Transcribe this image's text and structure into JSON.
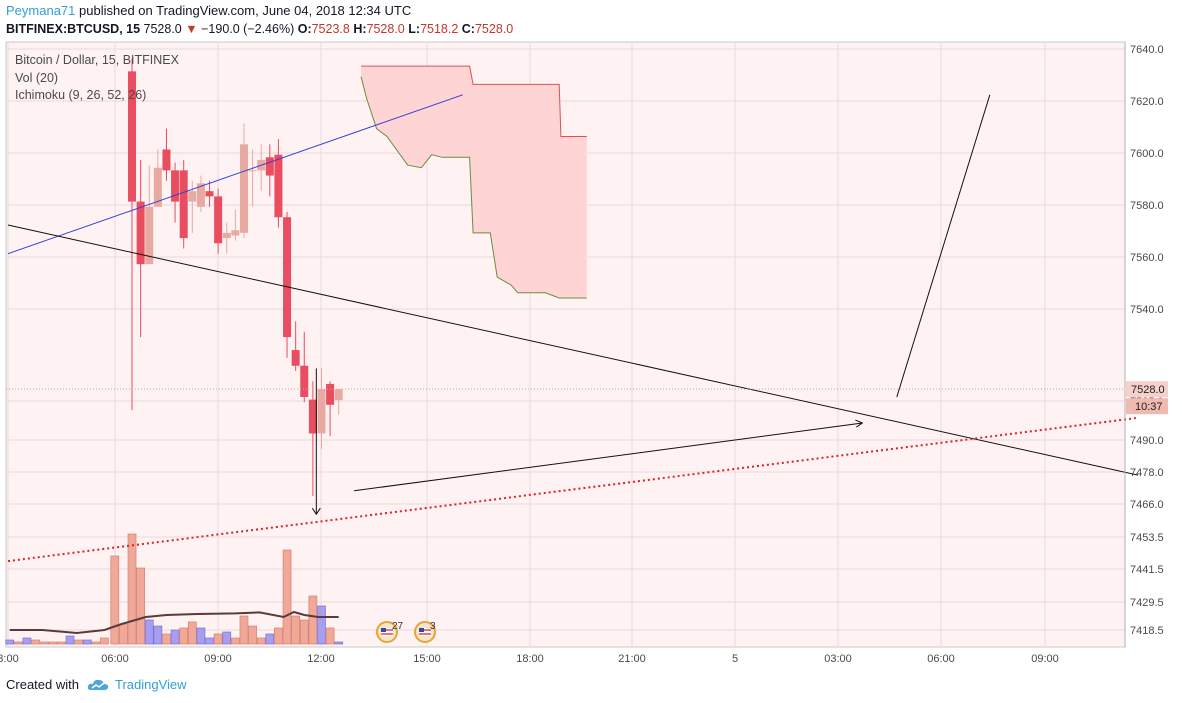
{
  "header": {
    "author": "Peymana71",
    "published_text": "published on TradingView.com, June 04, 2018 12:34 UTC",
    "symbol": "BITFINEX:BTCUSD, 15",
    "last": "7528.0",
    "change": "−190.0 (−2.46%)",
    "o_label": "O:",
    "o_value": "7523.8",
    "h_label": "H:",
    "h_value": "7528.0",
    "l_label": "L:",
    "l_value": "7518.2",
    "c_label": "C:",
    "c_value": "7528.0"
  },
  "legend": {
    "title": "Bitcoin / Dollar, 15, BITFINEX",
    "vol": "Vol (20)",
    "ichimoku": "Ichimoku (9, 26, 52, 26)"
  },
  "footer": {
    "created_with": "Created with",
    "brand": "TradingView"
  },
  "colors": {
    "up": "#e8a9a0",
    "down": "#e84d60",
    "vol_red": "#f0a899",
    "vol_blue": "#a69ff0",
    "cloud": "#ffd4d4",
    "blue_line": "#2a3fd8",
    "dotted": "#e02020",
    "bg": "#fff2f3"
  },
  "chart_data": {
    "type": "candlestick",
    "price_axis": {
      "labels": [
        "7640.0",
        "7620.0",
        "7600.0",
        "7580.0",
        "7560.0",
        "7540.0",
        "7505.0",
        "7490.0",
        "7478.0",
        "7466.0",
        "7453.5",
        "7441.5",
        "7429.5",
        "7418.5"
      ],
      "current_price": "7528.0",
      "countdown": "10:37"
    },
    "time_axis": {
      "labels": [
        "3:00",
        "06:00",
        "09:00",
        "12:00",
        "15:00",
        "18:00",
        "21:00",
        "5",
        "03:00",
        "06:00",
        "09:00"
      ],
      "start_hour": 3
    },
    "candles": [
      {
        "t": 6.6,
        "o": 7650,
        "h": 7655,
        "l": 7520,
        "c": 7600
      },
      {
        "t": 6.85,
        "o": 7600,
        "h": 7616,
        "l": 7548,
        "c": 7576
      },
      {
        "t": 7.1,
        "o": 7576,
        "h": 7614,
        "l": 7576,
        "c": 7598
      },
      {
        "t": 7.35,
        "o": 7598,
        "h": 7620,
        "l": 7598,
        "c": 7613
      },
      {
        "t": 7.6,
        "o": 7620,
        "h": 7628,
        "l": 7608,
        "c": 7612
      },
      {
        "t": 7.85,
        "o": 7612,
        "h": 7615,
        "l": 7592,
        "c": 7600
      },
      {
        "t": 8.1,
        "o": 7612,
        "h": 7616,
        "l": 7582,
        "c": 7586
      },
      {
        "t": 8.35,
        "o": 7600,
        "h": 7608,
        "l": 7588,
        "c": 7604
      },
      {
        "t": 8.6,
        "o": 7598,
        "h": 7610,
        "l": 7596,
        "c": 7607
      },
      {
        "t": 8.85,
        "o": 7604,
        "h": 7608,
        "l": 7598,
        "c": 7602
      },
      {
        "t": 9.1,
        "o": 7602,
        "h": 7605,
        "l": 7580,
        "c": 7584
      },
      {
        "t": 9.35,
        "o": 7586,
        "h": 7592,
        "l": 7580,
        "c": 7588
      },
      {
        "t": 9.6,
        "o": 7587,
        "h": 7597,
        "l": 7585,
        "c": 7589
      },
      {
        "t": 9.85,
        "o": 7588,
        "h": 7630,
        "l": 7586,
        "c": 7622
      },
      {
        "t": 10.1,
        "o": 7612,
        "h": 7620,
        "l": 7598,
        "c": 7612
      },
      {
        "t": 10.35,
        "o": 7612,
        "h": 7622,
        "l": 7604,
        "c": 7616
      },
      {
        "t": 10.6,
        "o": 7617,
        "h": 7622,
        "l": 7602,
        "c": 7610
      },
      {
        "t": 10.85,
        "o": 7618,
        "h": 7624,
        "l": 7590,
        "c": 7594
      },
      {
        "t": 11.1,
        "o": 7594,
        "h": 7596,
        "l": 7540,
        "c": 7548
      },
      {
        "t": 11.35,
        "o": 7543,
        "h": 7554,
        "l": 7535,
        "c": 7537
      },
      {
        "t": 11.6,
        "o": 7537,
        "h": 7550,
        "l": 7523,
        "c": 7525
      },
      {
        "t": 11.85,
        "o": 7524,
        "h": 7531,
        "l": 7487,
        "c": 7511
      },
      {
        "t": 12.1,
        "o": 7511,
        "h": 7536,
        "l": 7505,
        "c": 7528
      },
      {
        "t": 12.35,
        "o": 7530,
        "h": 7531,
        "l": 7510,
        "c": 7522
      },
      {
        "t": 12.6,
        "o": 7523.8,
        "h": 7528,
        "l": 7518.2,
        "c": 7528
      }
    ],
    "volume": [
      {
        "t": 3.05,
        "v": 2,
        "color": "blue"
      },
      {
        "t": 3.3,
        "v": 1,
        "color": "red"
      },
      {
        "t": 3.55,
        "v": 3,
        "color": "blue"
      },
      {
        "t": 3.8,
        "v": 2,
        "color": "red"
      },
      {
        "t": 4.05,
        "v": 1,
        "color": "red"
      },
      {
        "t": 4.3,
        "v": 1,
        "color": "red"
      },
      {
        "t": 4.55,
        "v": 1,
        "color": "red"
      },
      {
        "t": 4.8,
        "v": 4,
        "color": "blue"
      },
      {
        "t": 5.05,
        "v": 2,
        "color": "red"
      },
      {
        "t": 5.3,
        "v": 2,
        "color": "blue"
      },
      {
        "t": 5.55,
        "v": 1,
        "color": "red"
      },
      {
        "t": 5.8,
        "v": 3,
        "color": "red"
      },
      {
        "t": 6.1,
        "v": 44,
        "color": "red"
      },
      {
        "t": 6.35,
        "v": 10,
        "color": "red"
      },
      {
        "t": 6.6,
        "v": 55,
        "color": "red"
      },
      {
        "t": 6.85,
        "v": 38,
        "color": "red"
      },
      {
        "t": 7.1,
        "v": 12,
        "color": "blue"
      },
      {
        "t": 7.35,
        "v": 9,
        "color": "blue"
      },
      {
        "t": 7.6,
        "v": 5,
        "color": "red"
      },
      {
        "t": 7.85,
        "v": 7,
        "color": "blue"
      },
      {
        "t": 8.1,
        "v": 8,
        "color": "red"
      },
      {
        "t": 8.35,
        "v": 11,
        "color": "red"
      },
      {
        "t": 8.6,
        "v": 8,
        "color": "blue"
      },
      {
        "t": 8.85,
        "v": 3,
        "color": "blue"
      },
      {
        "t": 9.1,
        "v": 5,
        "color": "red"
      },
      {
        "t": 9.35,
        "v": 6,
        "color": "blue"
      },
      {
        "t": 9.6,
        "v": 3,
        "color": "red"
      },
      {
        "t": 9.85,
        "v": 14,
        "color": "red"
      },
      {
        "t": 10.1,
        "v": 9,
        "color": "red"
      },
      {
        "t": 10.35,
        "v": 3,
        "color": "red"
      },
      {
        "t": 10.6,
        "v": 5,
        "color": "blue"
      },
      {
        "t": 10.85,
        "v": 8,
        "color": "red"
      },
      {
        "t": 11.1,
        "v": 47,
        "color": "red"
      },
      {
        "t": 11.35,
        "v": 14,
        "color": "red"
      },
      {
        "t": 11.6,
        "v": 12,
        "color": "red"
      },
      {
        "t": 11.85,
        "v": 24,
        "color": "red"
      },
      {
        "t": 12.1,
        "v": 19,
        "color": "blue"
      },
      {
        "t": 12.35,
        "v": 8,
        "color": "red"
      },
      {
        "t": 12.6,
        "v": 1,
        "color": "blue"
      }
    ],
    "volume_ma": [
      [
        3.05,
        7
      ],
      [
        4.0,
        7
      ],
      [
        5.0,
        5.5
      ],
      [
        5.8,
        7
      ],
      [
        6.3,
        10
      ],
      [
        7.0,
        13.5
      ],
      [
        7.6,
        14.5
      ],
      [
        8.5,
        15
      ],
      [
        9.6,
        15.3
      ],
      [
        10.3,
        15.8
      ],
      [
        11.0,
        13.5
      ],
      [
        11.3,
        16
      ],
      [
        11.6,
        14.5
      ],
      [
        12.0,
        13.5
      ],
      [
        12.6,
        13.5
      ]
    ],
    "ichimoku_cloud": {
      "top": [
        [
          13.25,
          7652
        ],
        [
          14.2,
          7652
        ],
        [
          15.3,
          7652
        ],
        [
          16.4,
          7652
        ],
        [
          16.5,
          7645
        ],
        [
          19.0,
          7645
        ],
        [
          19.05,
          7625
        ],
        [
          19.8,
          7625
        ]
      ],
      "bottom": [
        [
          13.25,
          7648
        ],
        [
          13.4,
          7640
        ],
        [
          13.7,
          7628
        ],
        [
          14.0,
          7625
        ],
        [
          14.6,
          7614
        ],
        [
          15.0,
          7613
        ],
        [
          15.3,
          7618
        ],
        [
          15.6,
          7617
        ],
        [
          16.4,
          7617
        ],
        [
          16.5,
          7588
        ],
        [
          17.0,
          7588
        ],
        [
          17.2,
          7571
        ],
        [
          17.6,
          7568
        ],
        [
          17.8,
          7565
        ],
        [
          18.6,
          7565
        ],
        [
          19.0,
          7563
        ],
        [
          19.6,
          7563
        ],
        [
          19.8,
          7563
        ]
      ]
    },
    "drawings": {
      "blue_trendline": {
        "p1": [
          3.0,
          7580
        ],
        "p2": [
          16.2,
          7641
        ]
      },
      "black_trendline": {
        "p1": [
          3.0,
          7591
        ],
        "p2": [
          35.8,
          7495
        ]
      },
      "red_dotted_line": {
        "p1": [
          3.0,
          7462
        ],
        "p2": [
          35.8,
          7517
        ]
      },
      "arrow_down": {
        "p1": [
          11.95,
          7536
        ],
        "p2": [
          11.95,
          7480
        ]
      },
      "arrow_right": {
        "p1": [
          13.05,
          7489
        ],
        "p2": [
          27.8,
          7515
        ]
      },
      "forecast_line": {
        "p1": [
          28.8,
          7525
        ],
        "p2": [
          31.5,
          7641
        ]
      }
    }
  }
}
